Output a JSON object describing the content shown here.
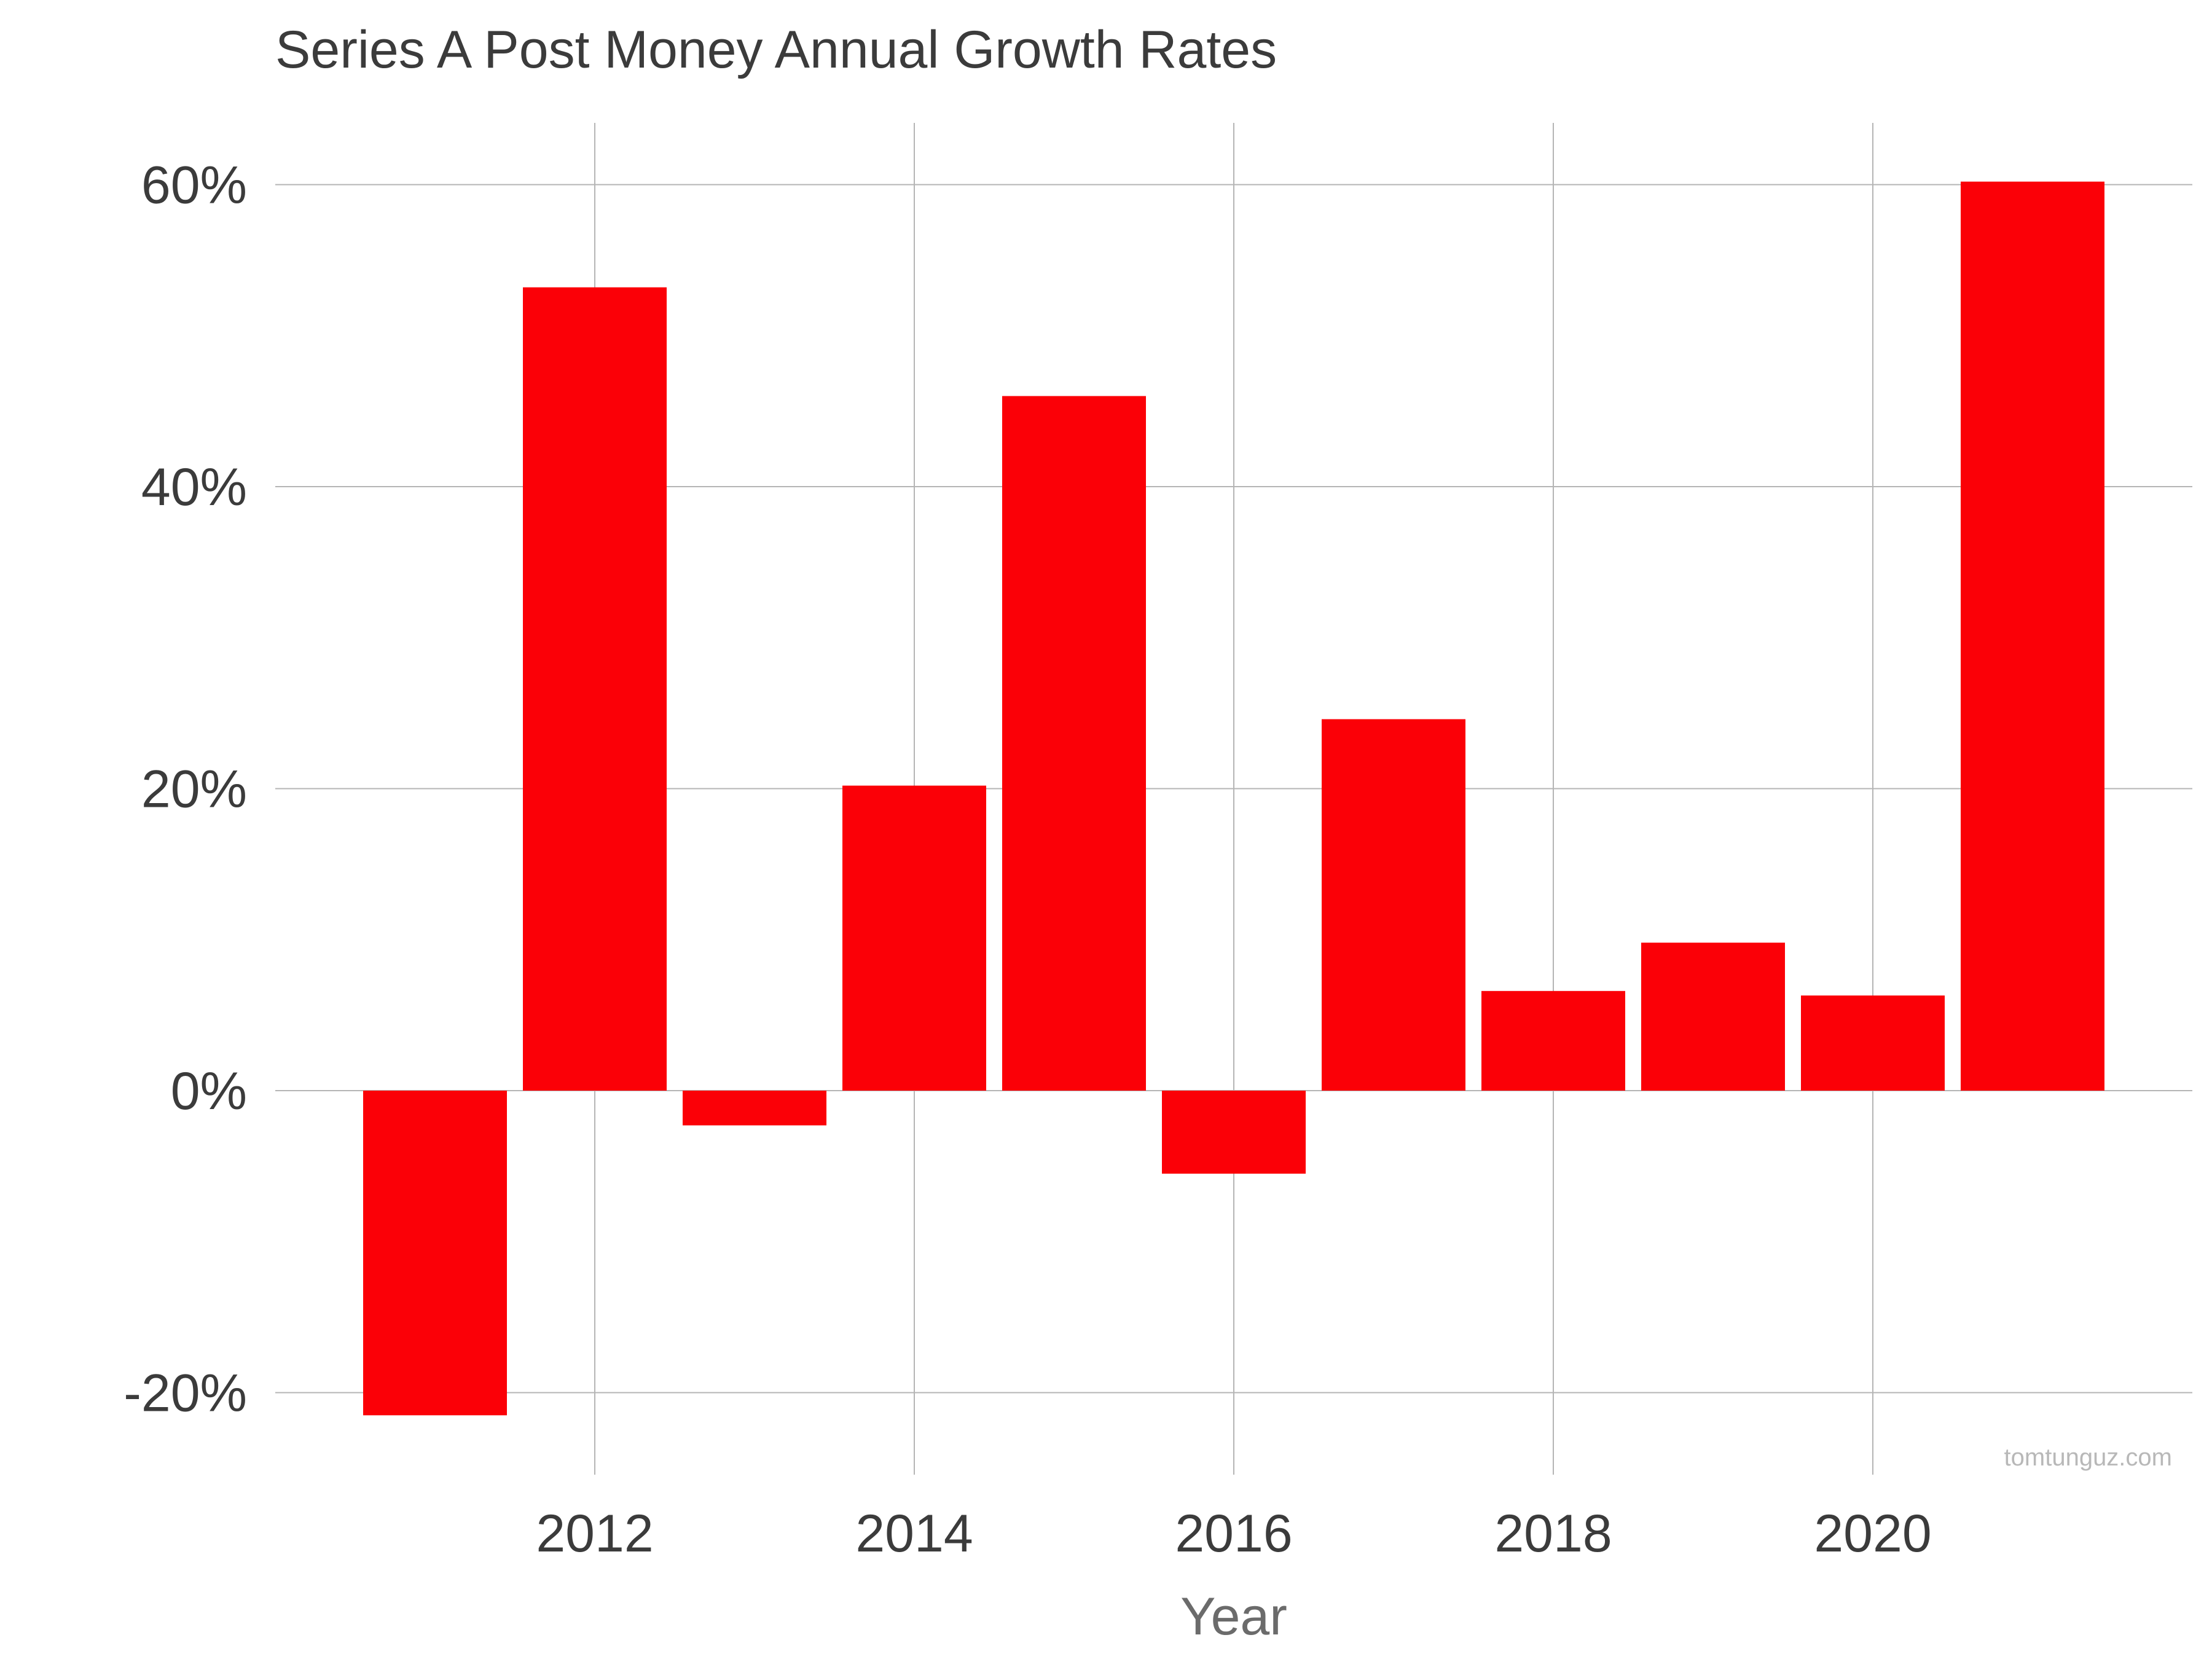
{
  "chart_data": {
    "type": "bar",
    "title": "Series A Post Money Annual Growth Rates",
    "xlabel": "Year",
    "ylabel": "",
    "x": [
      2011,
      2012,
      2013,
      2014,
      2015,
      2016,
      2017,
      2018,
      2019,
      2020,
      2021
    ],
    "values": [
      -21.5,
      53.2,
      -2.3,
      20.2,
      46.0,
      -5.5,
      24.6,
      6.6,
      9.8,
      6.3,
      60.2
    ],
    "value_format": "percent",
    "xlim": [
      2010,
      2022
    ],
    "ylim": [
      -25,
      65
    ],
    "x_ticks": [
      2012,
      2014,
      2016,
      2018,
      2020
    ],
    "x_tick_labels": [
      "2012",
      "2014",
      "2016",
      "2018",
      "2020"
    ],
    "y_ticks": [
      -20,
      0,
      20,
      40,
      60
    ],
    "y_tick_labels": [
      "-20%",
      "0%",
      "20%",
      "40%",
      "60%"
    ],
    "grid": true,
    "legend": "none",
    "bar_color": "#fb0007",
    "grid_color": "#b5b5b5",
    "text_color": "#3b3b3b",
    "axis_label_color": "#6b6b6b"
  },
  "watermark": "tomtunguz.com"
}
